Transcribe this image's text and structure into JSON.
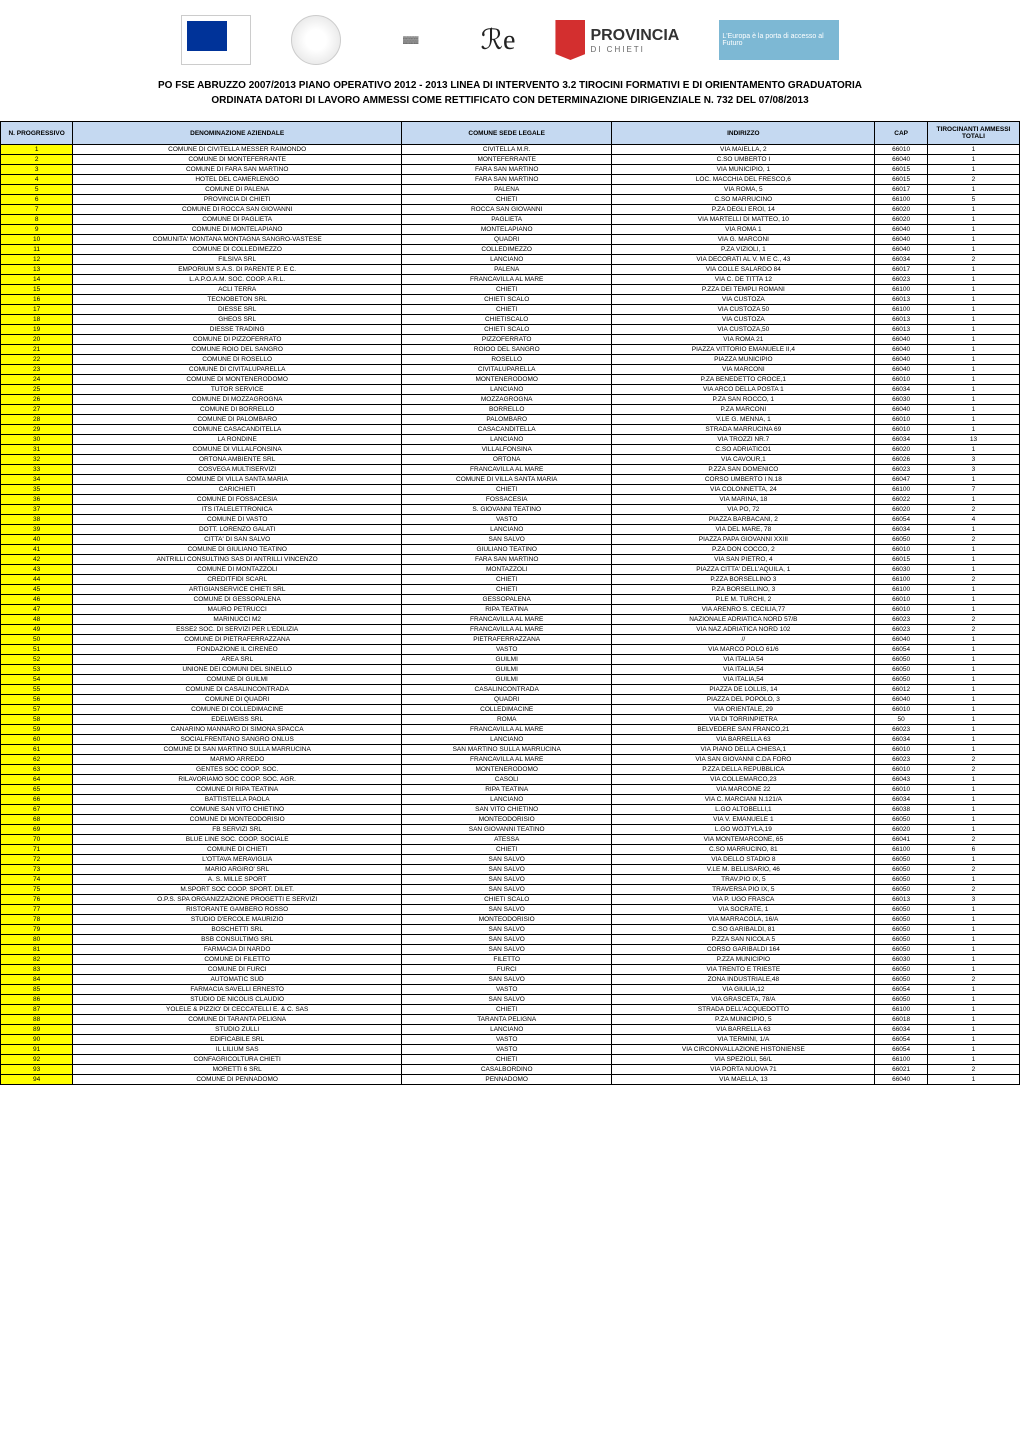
{
  "header": {
    "logo_provincia_main": "PROVINCIA",
    "logo_provincia_sub": "DI CHIETI",
    "logo_abruzzo_text": "L'Europa è la porta di accesso al Futuro"
  },
  "title": "PO FSE ABRUZZO 2007/2013 PIANO OPERATIVO 2012 - 2013 LINEA DI INTERVENTO 3.2 TIROCINI FORMATIVI E DI ORIENTAMENTO GRADUATORIA",
  "subtitle": "ORDINATA DATORI DI LAVORO AMMESSI COME RETTIFICATO CON DETERMINAZIONE DIRIGENZIALE N. 732 DEL 07/08/2013",
  "table": {
    "headers": {
      "n": "N. PROGRESSIVO",
      "denom": "DENOMINAZIONE AZIENDALE",
      "comune": "COMUNE SEDE LEGALE",
      "indir": "INDIRIZZO",
      "cap": "CAP",
      "tiro": "TIROCINANTI AMMESSI TOTALI"
    },
    "header_bg": "#c5d9f1",
    "num_col_bg": "#ffff00",
    "rows": [
      {
        "n": "1",
        "denom": "COMUNE DI CIVITELLA MESSER RAIMONDO",
        "comune": "CIVITELLA M.R.",
        "indir": "VIA MAIELLA, 2",
        "cap": "66010",
        "tiro": "1"
      },
      {
        "n": "2",
        "denom": "COMUNE DI MONTEFERRANTE",
        "comune": "MONTEFERRANTE",
        "indir": "C.SO UMBERTO I",
        "cap": "66040",
        "tiro": "1"
      },
      {
        "n": "3",
        "denom": "COMUNE DI FARA SAN MARTINO",
        "comune": "FARA SAN MARTINO",
        "indir": "VIA MUNICIPIO, 1",
        "cap": "66015",
        "tiro": "1"
      },
      {
        "n": "4",
        "denom": "HOTEL DEL CAMERLENGO",
        "comune": "FARA SAN MARTINO",
        "indir": "LOC. MACCHIA DEL FRESCO,6",
        "cap": "66015",
        "tiro": "2"
      },
      {
        "n": "5",
        "denom": "COMUNE DI PALENA",
        "comune": "PALENA",
        "indir": "VIA ROMA, 5",
        "cap": "66017",
        "tiro": "1"
      },
      {
        "n": "6",
        "denom": "PROVINCIA DI CHIETI",
        "comune": "CHIETI",
        "indir": "C.SO MARRUCINO",
        "cap": "66100",
        "tiro": "5"
      },
      {
        "n": "7",
        "denom": "COMUNE DI ROCCA SAN GIOVANNI",
        "comune": "ROCCA SAN GIOVANNI",
        "indir": "P.ZA DEGLI EROI, 14",
        "cap": "66020",
        "tiro": "1"
      },
      {
        "n": "8",
        "denom": "COMUNE DI PAGLIETA",
        "comune": "PAGLIETA",
        "indir": "VIA MARTELLI DI MATTEO, 10",
        "cap": "66020",
        "tiro": "1"
      },
      {
        "n": "9",
        "denom": "COMUNE DI MONTELAPIANO",
        "comune": "MONTELAPIANO",
        "indir": "VIA ROMA 1",
        "cap": "66040",
        "tiro": "1"
      },
      {
        "n": "10",
        "denom": "COMUNITA' MONTANA MONTAGNA SANGRO-VASTESE",
        "comune": "QUADRI",
        "indir": "VIA G. MARCONI",
        "cap": "66040",
        "tiro": "1"
      },
      {
        "n": "11",
        "denom": "COMUNE DI COLLEDIMEZZO",
        "comune": "COLLEDIMEZZO",
        "indir": "P.ZA VIZIOLI, 1",
        "cap": "66040",
        "tiro": "1"
      },
      {
        "n": "12",
        "denom": "FILSIVA SRL",
        "comune": "LANCIANO",
        "indir": "VIA DECORATI AL V. M E C., 43",
        "cap": "66034",
        "tiro": "2"
      },
      {
        "n": "13",
        "denom": "EMPORIUM S.A.S. DI PARENTE P. E C.",
        "comune": "PALENA",
        "indir": "VIA COLLE SALARDO 84",
        "cap": "66017",
        "tiro": "1"
      },
      {
        "n": "14",
        "denom": "L.A.P.O.A.M. SOC. COOP. A R.L.",
        "comune": "FRANCAVILLA AL MARE",
        "indir": "VIA C. DE TITTA 12",
        "cap": "66023",
        "tiro": "1"
      },
      {
        "n": "15",
        "denom": "ACLI TERRA",
        "comune": "CHIETI",
        "indir": "P.ZZA DEI TEMPLI ROMANI",
        "cap": "66100",
        "tiro": "1"
      },
      {
        "n": "16",
        "denom": "TECNOBETON SRL",
        "comune": "CHIETI SCALO",
        "indir": "VIA CUSTOZA",
        "cap": "66013",
        "tiro": "1"
      },
      {
        "n": "17",
        "denom": "DIESSE SRL",
        "comune": "CHIETI",
        "indir": "VIA CUSTOZA 50",
        "cap": "66100",
        "tiro": "1"
      },
      {
        "n": "18",
        "denom": "GHEOS SRL",
        "comune": "CHIETISCALO",
        "indir": "VIA CUSTOZA",
        "cap": "66013",
        "tiro": "1"
      },
      {
        "n": "19",
        "denom": "DIESSE TRADING",
        "comune": "CHIETI SCALO",
        "indir": "VIA CUSTOZA,50",
        "cap": "66013",
        "tiro": "1"
      },
      {
        "n": "20",
        "denom": "COMUNE DI PIZZOFERRATO",
        "comune": "PIZZOFERRATO",
        "indir": "VIA ROMA 21",
        "cap": "66040",
        "tiro": "1"
      },
      {
        "n": "21",
        "denom": "COMUNE ROIO DEL SANGRO",
        "comune": "ROIOO DEL SANGRO",
        "indir": "PIAZZA VITTORIO EMANUELE II,4",
        "cap": "66040",
        "tiro": "1"
      },
      {
        "n": "22",
        "denom": "COMUNE DI ROSELLO",
        "comune": "ROSELLO",
        "indir": "PIAZZA MUNICIPIO",
        "cap": "66040",
        "tiro": "1"
      },
      {
        "n": "23",
        "denom": "COMUNE DI CIVITALUPARELLA",
        "comune": "CIVITALUPARELLA",
        "indir": "VIA MARCONI",
        "cap": "66040",
        "tiro": "1"
      },
      {
        "n": "24",
        "denom": "COMUNE DI MONTENERODOMO",
        "comune": "MONTENERODOMO",
        "indir": "P.ZA BENEDETTO CROCE,1",
        "cap": "66010",
        "tiro": "1"
      },
      {
        "n": "25",
        "denom": "TUTOR SERVICE",
        "comune": "LANCIANO",
        "indir": "VIA ARCO DELLA POSTA 1",
        "cap": "66034",
        "tiro": "1"
      },
      {
        "n": "26",
        "denom": "COMUNE DI MOZZAGROGNA",
        "comune": "MOZZAGROGNA",
        "indir": "P.ZA SAN ROCCO, 1",
        "cap": "66030",
        "tiro": "1"
      },
      {
        "n": "27",
        "denom": "COMUNE DI BORRELLO",
        "comune": "BORRELLO",
        "indir": "P.ZA MARCONI",
        "cap": "66040",
        "tiro": "1"
      },
      {
        "n": "28",
        "denom": "COMUNE DI PALOMBARO",
        "comune": "PALOMBARO",
        "indir": "V.LE G. MENNA, 1",
        "cap": "66010",
        "tiro": "1"
      },
      {
        "n": "29",
        "denom": "COMUNE CASACANDITELLA",
        "comune": "CASACANDITELLA",
        "indir": "STRADA MARRUCINA 69",
        "cap": "66010",
        "tiro": "1"
      },
      {
        "n": "30",
        "denom": "LA RONDINE",
        "comune": "LANCIANO",
        "indir": "VIA TROZZI NR.7",
        "cap": "66034",
        "tiro": "13"
      },
      {
        "n": "31",
        "denom": "COMUNE DI VILLALFONSINA",
        "comune": "VILLALFONSINA",
        "indir": "C.SO ADRIATICO1",
        "cap": "66020",
        "tiro": "1"
      },
      {
        "n": "32",
        "denom": "ORTONA AMBIENTE SRL",
        "comune": "ORTONA",
        "indir": "VIA CAVOUR,1",
        "cap": "66026",
        "tiro": "3"
      },
      {
        "n": "33",
        "denom": "COSVEGA MULTISERVIZI",
        "comune": "FRANCAVILLA AL MARE",
        "indir": "P.ZZA SAN DOMENICO",
        "cap": "66023",
        "tiro": "3"
      },
      {
        "n": "34",
        "denom": "COMUNE DI VILLA SANTA MARIA",
        "comune": "COMUNE DI VILLA SANTA MARIA",
        "indir": "CORSO UMBERTO I N.18",
        "cap": "66047",
        "tiro": "1"
      },
      {
        "n": "35",
        "denom": "CARICHIETI",
        "comune": "CHIETI",
        "indir": "VIA COLONNETTA, 24",
        "cap": "66100",
        "tiro": "7"
      },
      {
        "n": "36",
        "denom": "COMUNE DI FOSSACESIA",
        "comune": "FOSSACESIA",
        "indir": "VIA MARINA, 18",
        "cap": "66022",
        "tiro": "1"
      },
      {
        "n": "37",
        "denom": "ITS ITALELETTRONICA",
        "comune": "S. GIOVANNI TEATINO",
        "indir": "VIA PO, 72",
        "cap": "66020",
        "tiro": "2"
      },
      {
        "n": "38",
        "denom": "COMUNE DI VASTO",
        "comune": "VASTO",
        "indir": "PIAZZA BARBACANI, 2",
        "cap": "66054",
        "tiro": "4"
      },
      {
        "n": "39",
        "denom": "DOTT. LORENZO GALATI",
        "comune": "LANCIANO",
        "indir": "VIA DEL MARE, 78",
        "cap": "66034",
        "tiro": "1"
      },
      {
        "n": "40",
        "denom": "CITTA' DI SAN SALVO",
        "comune": "SAN SALVO",
        "indir": "PIAZZA PAPA GIOVANNI XXIII",
        "cap": "66050",
        "tiro": "2"
      },
      {
        "n": "41",
        "denom": "COMUNE DI GIULIANO TEATINO",
        "comune": "GIULIANO TEATINO",
        "indir": "P.ZA DON COCCO, 2",
        "cap": "66010",
        "tiro": "1"
      },
      {
        "n": "42",
        "denom": "ANTRILLI CONSULTING SAS DI ANTRILLI VINCENZO",
        "comune": "FARA SAN MARTINO",
        "indir": "VIA SAN PIETRO, 4",
        "cap": "66015",
        "tiro": "1"
      },
      {
        "n": "43",
        "denom": "COMUNE DI MONTAZZOLI",
        "comune": "MONTAZZOLI",
        "indir": "PIAZZA CITTA' DELL'AQUILA, 1",
        "cap": "66030",
        "tiro": "1"
      },
      {
        "n": "44",
        "denom": "CREDITFIDI SCARL",
        "comune": "CHIETI",
        "indir": "P.ZZA BORSELLINO 3",
        "cap": "66100",
        "tiro": "2"
      },
      {
        "n": "45",
        "denom": "ARTIGIANSERVICE CHIETI SRL",
        "comune": "CHIETI",
        "indir": "P.ZA BORSELLINO, 3",
        "cap": "66100",
        "tiro": "1"
      },
      {
        "n": "46",
        "denom": "COMUNE DI GESSOPALENA",
        "comune": "GESSOPALENA",
        "indir": "P.LE M. TURCHI, 2",
        "cap": "66010",
        "tiro": "1"
      },
      {
        "n": "47",
        "denom": "MAURO PETRUCCI",
        "comune": "RIPA TEATINA",
        "indir": "VIA ARENRO S. CECILIA,77",
        "cap": "66010",
        "tiro": "1"
      },
      {
        "n": "48",
        "denom": "MARINUCCI M2",
        "comune": "FRANCAVILLA AL MARE",
        "indir": "NAZIONALE ADRIATICA NORD 57/B",
        "cap": "66023",
        "tiro": "2"
      },
      {
        "n": "49",
        "denom": "ESSE2 SOC. DI SERVIZI PER L'EDILIZIA",
        "comune": "FRANCAVILLA AL MARE",
        "indir": "VIA NAZ.ADRIATICA NORD 102",
        "cap": "66023",
        "tiro": "2"
      },
      {
        "n": "50",
        "denom": "COMUNE DI PIETRAFERRAZZANA",
        "comune": "PIETRAFERRAZZANA",
        "indir": "//",
        "cap": "66040",
        "tiro": "1"
      },
      {
        "n": "51",
        "denom": "FONDAZIONE IL CIRENEO",
        "comune": "VASTO",
        "indir": "VIA MARCO POLO 61/6",
        "cap": "66054",
        "tiro": "1"
      },
      {
        "n": "52",
        "denom": "AREA SRL",
        "comune": "GUILMI",
        "indir": "VIA ITALIA 54",
        "cap": "66050",
        "tiro": "1"
      },
      {
        "n": "53",
        "denom": "UNIONE DEI COMUNI DEL SINELLO",
        "comune": "GUILMI",
        "indir": "VIA ITALIA,54",
        "cap": "66050",
        "tiro": "1"
      },
      {
        "n": "54",
        "denom": "COMUNE DI GUILMI",
        "comune": "GUILMI",
        "indir": "VIA ITALIA,54",
        "cap": "66050",
        "tiro": "1"
      },
      {
        "n": "55",
        "denom": "COMUNE DI CASALINCONTRADA",
        "comune": "CASALINCONTRADA",
        "indir": "PIAZZA DE LOLLIS, 14",
        "cap": "66012",
        "tiro": "1"
      },
      {
        "n": "56",
        "denom": "COMUNE DI QUADRI",
        "comune": "QUADRI",
        "indir": "PIAZZA DEL POPOLO, 3",
        "cap": "66040",
        "tiro": "1"
      },
      {
        "n": "57",
        "denom": "COMUNE DI COLLEDIMACINE",
        "comune": "COLLEDIMACINE",
        "indir": "VIA ORIENTALE, 29",
        "cap": "66010",
        "tiro": "1"
      },
      {
        "n": "58",
        "denom": "EDELWEISS SRL",
        "comune": "ROMA",
        "indir": "VIA DI TORRINPIETRA",
        "cap": "50",
        "tiro": "1"
      },
      {
        "n": "59",
        "denom": "CANARINO MANNARO DI SIMONA SPACCA",
        "comune": "FRANCAVILLA AL MARE",
        "indir": "BELVEDERE SAN FRANCO,21",
        "cap": "66023",
        "tiro": "1"
      },
      {
        "n": "60",
        "denom": "SOCIALFRENTANO SANGRO ONLUS",
        "comune": "LANCIANO",
        "indir": "VIA BARRELLA 63",
        "cap": "66034",
        "tiro": "1"
      },
      {
        "n": "61",
        "denom": "COMUNE DI SAN MARTINO SULLA MARRUCINA",
        "comune": "SAN MARTINO SULLA MARRUCINA",
        "indir": "VIA PIANO DELLA CHIESA,1",
        "cap": "66010",
        "tiro": "1"
      },
      {
        "n": "62",
        "denom": "MARMO ARREDO",
        "comune": "FRANCAVILLA AL MARE",
        "indir": "VIA SAN GIOVANNI C.DA FORO",
        "cap": "66023",
        "tiro": "2"
      },
      {
        "n": "63",
        "denom": "GENTES SOC COOP. SOC.",
        "comune": "MONTENERODOMO",
        "indir": "P.ZZA DELLA REPUBBLICA",
        "cap": "66010",
        "tiro": "2"
      },
      {
        "n": "64",
        "denom": "RILAVORIAMO SOC COOP. SOC. AGR.",
        "comune": "CASOLI",
        "indir": "VIA COLLEMARCO,23",
        "cap": "66043",
        "tiro": "1"
      },
      {
        "n": "65",
        "denom": "COMUNE DI RIPA TEATINA",
        "comune": "RIPA TEATINA",
        "indir": "VIA MARCONE 22",
        "cap": "66010",
        "tiro": "1"
      },
      {
        "n": "66",
        "denom": "BATTISTELLA PAOLA",
        "comune": "LANCIANO",
        "indir": "VIA C. MARCIANI N.121/A",
        "cap": "66034",
        "tiro": "1"
      },
      {
        "n": "67",
        "denom": "COMUNE SAN VITO CHIETINO",
        "comune": "SAN VITO CHIETINO",
        "indir": "L.GO ALTOBELLI,1",
        "cap": "66038",
        "tiro": "1"
      },
      {
        "n": "68",
        "denom": "COMUNE DI MONTEODORISIO",
        "comune": "MONTEODORISIO",
        "indir": "VIA V. EMANUELE 1",
        "cap": "66050",
        "tiro": "1"
      },
      {
        "n": "69",
        "denom": "FB SERVIZI SRL",
        "comune": "SAN GIOVANNI TEATINO",
        "indir": "L.GO WOJTYLA,19",
        "cap": "66020",
        "tiro": "1"
      },
      {
        "n": "70",
        "denom": "BLUE LINE SOC. COOP. SOCIALE",
        "comune": "ATESSA",
        "indir": "VIA MONTEMARCONE, 65",
        "cap": "66041",
        "tiro": "2"
      },
      {
        "n": "71",
        "denom": "COMUNE DI CHIETI",
        "comune": "CHIETI",
        "indir": "C.SO MARRUCINO, 81",
        "cap": "66100",
        "tiro": "6"
      },
      {
        "n": "72",
        "denom": "L'OTTAVA MERAVIGLIA",
        "comune": "SAN SALVO",
        "indir": "VIA DELLO STADIO 8",
        "cap": "66050",
        "tiro": "1"
      },
      {
        "n": "73",
        "denom": "MARIO ARGIRO' SRL",
        "comune": "SAN SALVO",
        "indir": "V.LE M. BELLISARIO, 46",
        "cap": "66050",
        "tiro": "2"
      },
      {
        "n": "74",
        "denom": "A. S. MILLE SPORT",
        "comune": "SAN SALVO",
        "indir": "TRAV.PIO IX, 5",
        "cap": "66050",
        "tiro": "1"
      },
      {
        "n": "75",
        "denom": "M.SPORT SOC COOP. SPORT. DILET.",
        "comune": "SAN SALVO",
        "indir": "TRAVERSA PIO IX, 5",
        "cap": "66050",
        "tiro": "2"
      },
      {
        "n": "76",
        "denom": "O.P.S. SPA ORGANIZZAZIONE PROGETTI E SERVIZI",
        "comune": "CHIETI SCALO",
        "indir": "VIA P. UGO FRASCA",
        "cap": "66013",
        "tiro": "3"
      },
      {
        "n": "77",
        "denom": "RISTORANTE GAMBERO ROSSO",
        "comune": "SAN SALVO",
        "indir": "VIA SOCRATE, 1",
        "cap": "66050",
        "tiro": "1"
      },
      {
        "n": "78",
        "denom": "STUDIO D'ERCOLE MAURIZIO",
        "comune": "MONTEODORISIO",
        "indir": "VIA MARRACOLA, 16/A",
        "cap": "66050",
        "tiro": "1"
      },
      {
        "n": "79",
        "denom": "BOSCHETTI SRL",
        "comune": "SAN SALVO",
        "indir": "C.SO GARIBALDI, 81",
        "cap": "66050",
        "tiro": "1"
      },
      {
        "n": "80",
        "denom": "BSB CONSULTIMG SRL",
        "comune": "SAN SALVO",
        "indir": "P.ZZA SAN NICOLA 5",
        "cap": "66050",
        "tiro": "1"
      },
      {
        "n": "81",
        "denom": "FARMACIA DI NARDO",
        "comune": "SAN SALVO",
        "indir": "CORSO GARIBALDI 164",
        "cap": "66050",
        "tiro": "1"
      },
      {
        "n": "82",
        "denom": "COMUNE DI FILETTO",
        "comune": "FILETTO",
        "indir": "P.ZZA MUNICIPIO",
        "cap": "66030",
        "tiro": "1"
      },
      {
        "n": "83",
        "denom": "COMUNE DI FURCI",
        "comune": "FURCI",
        "indir": "VIA TRENTO E TRIESTE",
        "cap": "66050",
        "tiro": "1"
      },
      {
        "n": "84",
        "denom": "AUTOMATIC SUD",
        "comune": "SAN SALVO",
        "indir": "ZONA INDUSTRIALE,48",
        "cap": "66050",
        "tiro": "2"
      },
      {
        "n": "85",
        "denom": "FARMACIA SAVELLI ERNESTO",
        "comune": "VASTO",
        "indir": "VIA GIULIA,12",
        "cap": "66054",
        "tiro": "1"
      },
      {
        "n": "86",
        "denom": "STUDIO DE NICOLIS CLAUDIO",
        "comune": "SAN SALVO",
        "indir": "VIA GRASCETA, 78/A",
        "cap": "66050",
        "tiro": "1"
      },
      {
        "n": "87",
        "denom": "YOLELE & PIZZIO' DI CECCATELLI E. & C. SAS",
        "comune": "CHIETI",
        "indir": "STRADA DELL'ACQUEDOTTO",
        "cap": "66100",
        "tiro": "1"
      },
      {
        "n": "88",
        "denom": "COMUNE DI TARANTA PELIGNA",
        "comune": "TARANTA PELIGNA",
        "indir": "P.ZA MUNICIPIO, 5",
        "cap": "66018",
        "tiro": "1"
      },
      {
        "n": "89",
        "denom": "STUDIO ZULLI",
        "comune": "LANCIANO",
        "indir": "VIA BARRELLA 63",
        "cap": "66034",
        "tiro": "1"
      },
      {
        "n": "90",
        "denom": "EDIFICABILE SRL",
        "comune": "VASTO",
        "indir": "VIA TERMINI, 1/A",
        "cap": "66054",
        "tiro": "1"
      },
      {
        "n": "91",
        "denom": "IL LILIUM SAS",
        "comune": "VASTO",
        "indir": "VIA CIRCONVALLAZIONE HISTONIENSE",
        "cap": "66054",
        "tiro": "1"
      },
      {
        "n": "92",
        "denom": "CONFAGRICOLTURA CHIETI",
        "comune": "CHIETI",
        "indir": "VIA SPEZIOLI, 56/L",
        "cap": "66100",
        "tiro": "1"
      },
      {
        "n": "93",
        "denom": "MORETTI 6 SRL",
        "comune": "CASALBORDINO",
        "indir": "VIA PORTA NUOVA 71",
        "cap": "66021",
        "tiro": "2"
      },
      {
        "n": "94",
        "denom": "COMUNE DI PENNADOMO",
        "comune": "PENNADOMO",
        "indir": "VIA MAELLA, 13",
        "cap": "66040",
        "tiro": "1"
      }
    ]
  }
}
